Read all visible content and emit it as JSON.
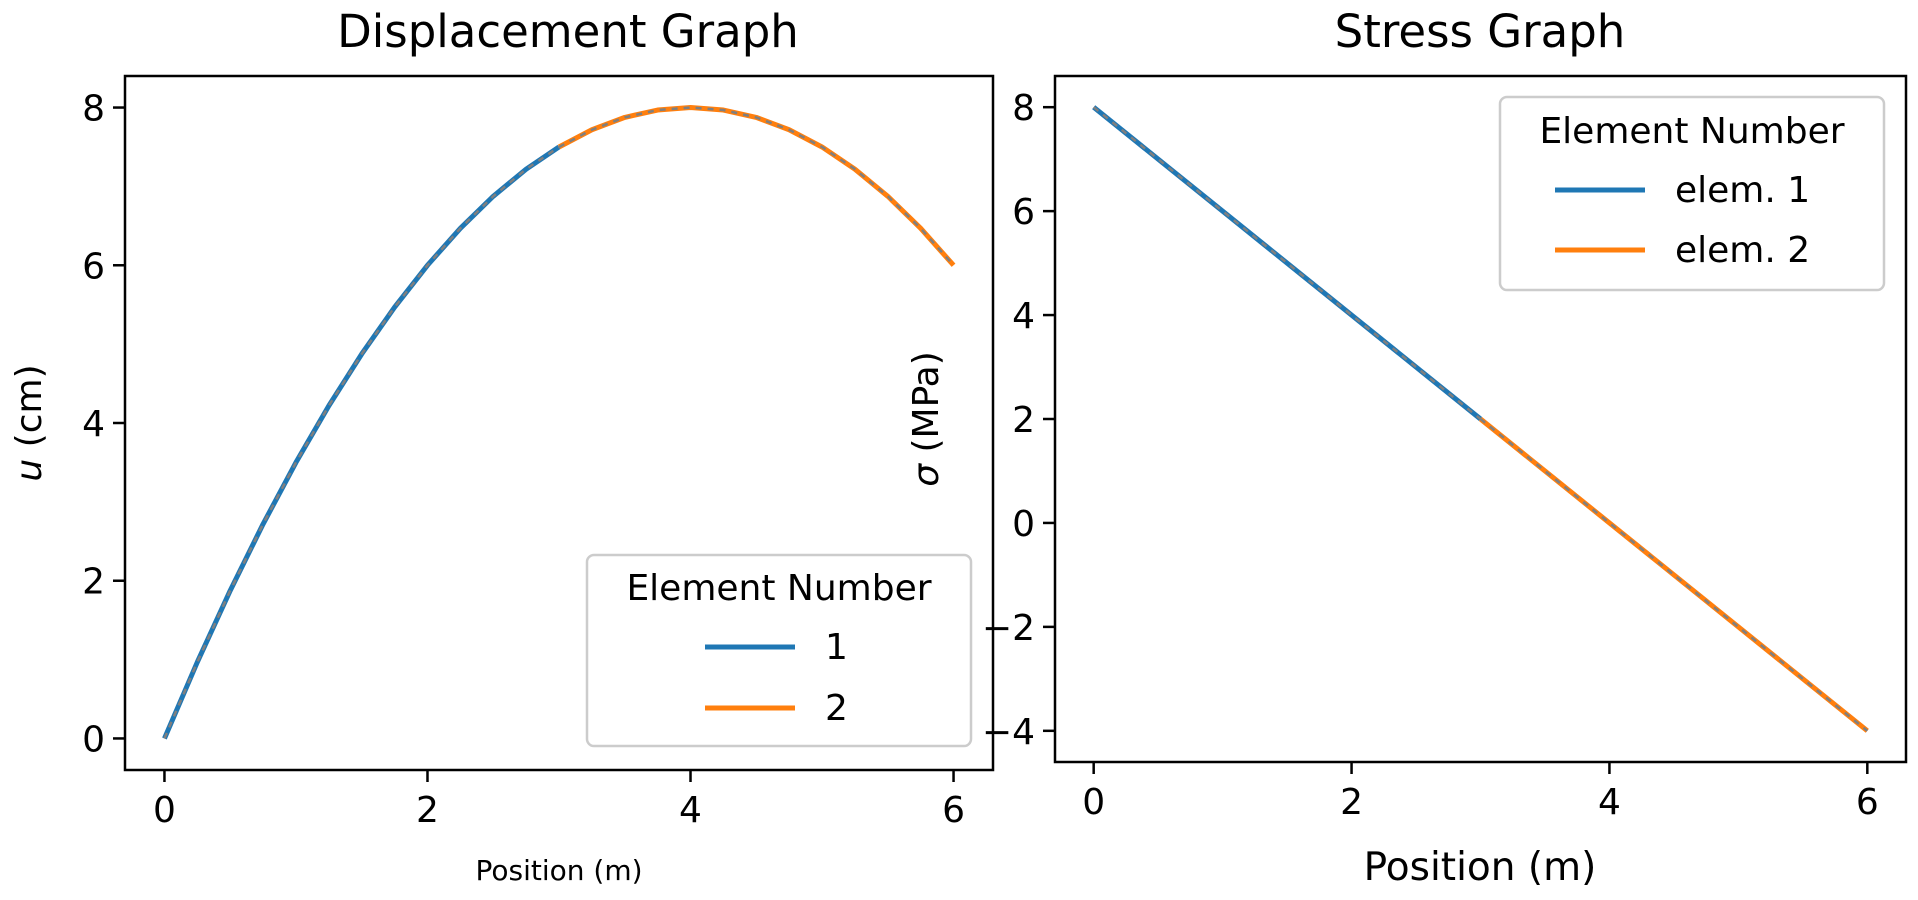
{
  "colors": {
    "series_1": "#1f77b4",
    "series_2": "#ff7f0e",
    "overlay_dash": "#7f7f7f",
    "axes": "#000000",
    "legend_border": "#cccccc"
  },
  "chart_data": [
    {
      "type": "line",
      "title": "Displacement Graph",
      "xlabel": "Position (m)",
      "ylabel_symbol": "u",
      "ylabel_unit": "(cm)",
      "xlim": [
        -0.3,
        6.3
      ],
      "ylim": [
        -0.4,
        8.4
      ],
      "xticks": [
        0,
        2,
        4,
        6
      ],
      "yticks": [
        0,
        2,
        4,
        6,
        8
      ],
      "grid": false,
      "legend": {
        "title": "Element Number",
        "placement": "lower-right",
        "entries": [
          "1",
          "2"
        ]
      },
      "series": [
        {
          "name": "1",
          "color": "#1f77b4",
          "x": [
            0,
            0.25,
            0.5,
            0.75,
            1.0,
            1.25,
            1.5,
            1.75,
            2.0,
            2.25,
            2.5,
            2.75,
            3.0
          ],
          "y": [
            0,
            0.96875,
            1.875,
            2.71875,
            3.5,
            4.21875,
            4.875,
            5.46875,
            6.0,
            6.46875,
            6.875,
            7.21875,
            7.5
          ]
        },
        {
          "name": "2",
          "color": "#ff7f0e",
          "x": [
            3.0,
            3.25,
            3.5,
            3.75,
            4.0,
            4.25,
            4.5,
            4.75,
            5.0,
            5.25,
            5.5,
            5.75,
            6.0
          ],
          "y": [
            7.5,
            7.71875,
            7.875,
            7.96875,
            8.0,
            7.96875,
            7.875,
            7.71875,
            7.5,
            7.21875,
            6.875,
            6.46875,
            6.0
          ]
        }
      ]
    },
    {
      "type": "line",
      "title": "Stress Graph",
      "xlabel": "Position (m)",
      "ylabel_symbol": "σ",
      "ylabel_unit": "(MPa)",
      "xlim": [
        -0.3,
        6.3
      ],
      "ylim": [
        -4.6,
        8.6
      ],
      "xticks": [
        0,
        2,
        4,
        6
      ],
      "yticks": [
        8,
        6,
        4,
        2,
        0,
        -2,
        -4
      ],
      "ytick_labels": [
        "8",
        "6",
        "4",
        "2",
        "0",
        "−2",
        "−4"
      ],
      "grid": false,
      "legend": {
        "title": "Element Number",
        "placement": "upper-right",
        "entries": [
          "elem. 1",
          "elem. 2"
        ]
      },
      "series": [
        {
          "name": "elem. 1",
          "color": "#1f77b4",
          "x": [
            0,
            3
          ],
          "y": [
            8,
            2
          ]
        },
        {
          "name": "elem. 2",
          "color": "#ff7f0e",
          "x": [
            3,
            6
          ],
          "y": [
            2,
            -4
          ]
        }
      ]
    }
  ]
}
